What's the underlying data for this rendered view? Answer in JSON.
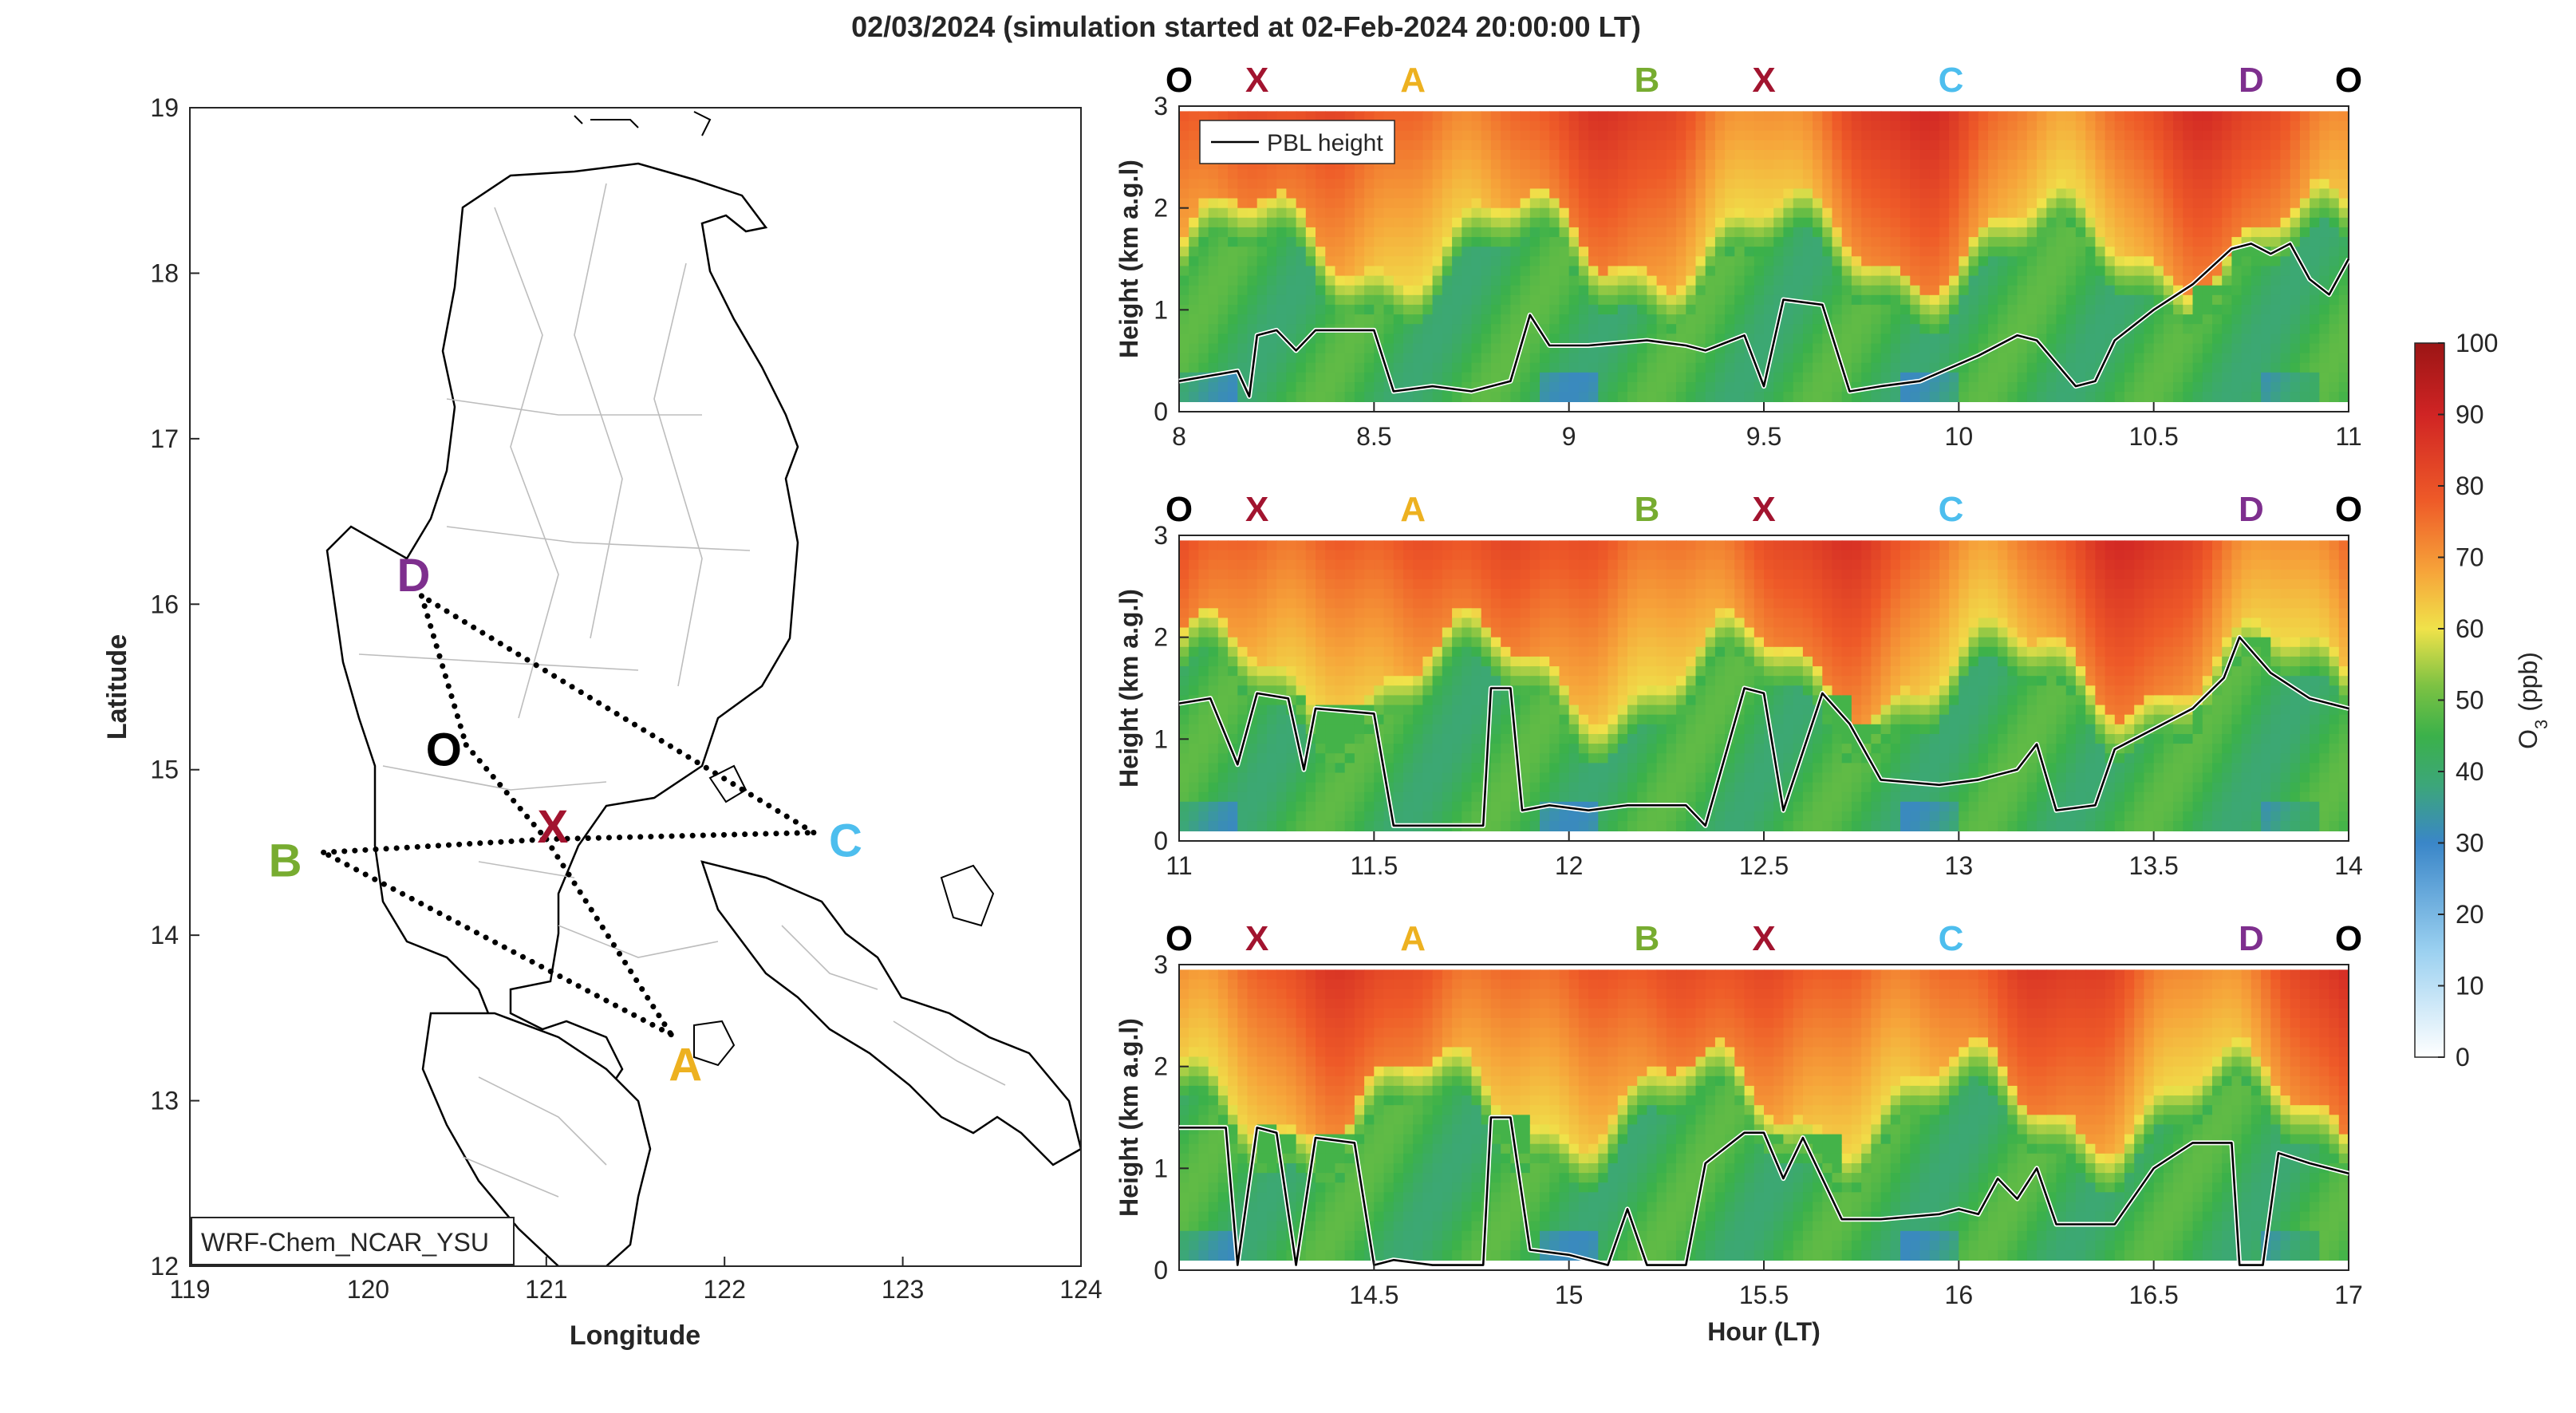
{
  "title": "02/03/2024 (simulation started at 02-Feb-2024 20:00:00 LT)",
  "chart_data": [
    {
      "type": "map",
      "xlabel": "Longitude",
      "ylabel": "Latitude",
      "xlim": [
        119,
        124
      ],
      "ylim": [
        12,
        19
      ],
      "xticks": [
        119,
        120,
        121,
        122,
        123,
        124
      ],
      "yticks": [
        12,
        13,
        14,
        15,
        16,
        17,
        18,
        19
      ],
      "model_label": "WRF-Chem_NCAR_YSU",
      "route": [
        "O",
        "X",
        "A",
        "B",
        "X",
        "C",
        "D",
        "O"
      ],
      "points": [
        {
          "id": "D",
          "lon": 120.3,
          "lat": 16.05,
          "color": "#7E2F8E"
        },
        {
          "id": "O",
          "lon": 120.55,
          "lat": 15.15,
          "color": "#000000"
        },
        {
          "id": "X",
          "lon": 121.0,
          "lat": 14.58,
          "color": "#A2142F"
        },
        {
          "id": "B",
          "lon": 119.75,
          "lat": 14.5,
          "color": "#77AC30"
        },
        {
          "id": "C",
          "lon": 122.5,
          "lat": 14.62,
          "color": "#4DBEEE"
        },
        {
          "id": "A",
          "lon": 121.7,
          "lat": 13.4,
          "color": "#EDB120"
        }
      ]
    },
    {
      "type": "heatmap",
      "ylabel": "Height (km a.g.l)",
      "xlim": [
        8,
        11
      ],
      "ylim": [
        0,
        3
      ],
      "xticks": [
        "8",
        "8.5",
        "9",
        "9.5",
        "10",
        "10.5",
        "11"
      ],
      "yticks": [
        "0",
        "1",
        "2",
        "3"
      ],
      "legend": "PBL height",
      "markers": [
        {
          "label": "O",
          "x": 8.0,
          "color": "#000000"
        },
        {
          "label": "X",
          "x": 8.2,
          "color": "#A2142F"
        },
        {
          "label": "A",
          "x": 8.6,
          "color": "#EDB120"
        },
        {
          "label": "B",
          "x": 9.2,
          "color": "#77AC30"
        },
        {
          "label": "X",
          "x": 9.5,
          "color": "#A2142F"
        },
        {
          "label": "C",
          "x": 9.98,
          "color": "#4DBEEE"
        },
        {
          "label": "D",
          "x": 10.75,
          "color": "#7E2F8E"
        },
        {
          "label": "O",
          "x": 11.0,
          "color": "#000000"
        }
      ],
      "pbl_height": {
        "x": [
          8.0,
          8.15,
          8.18,
          8.2,
          8.25,
          8.3,
          8.35,
          8.45,
          8.5,
          8.55,
          8.65,
          8.75,
          8.85,
          8.9,
          8.95,
          9.05,
          9.2,
          9.3,
          9.35,
          9.45,
          9.5,
          9.55,
          9.65,
          9.72,
          9.8,
          9.9,
          10.05,
          10.15,
          10.2,
          10.3,
          10.35,
          10.4,
          10.5,
          10.6,
          10.7,
          10.75,
          10.8,
          10.85,
          10.9,
          10.95,
          11.0
        ],
        "y": [
          0.3,
          0.4,
          0.15,
          0.75,
          0.8,
          0.6,
          0.8,
          0.8,
          0.8,
          0.2,
          0.25,
          0.2,
          0.3,
          0.95,
          0.65,
          0.65,
          0.7,
          0.65,
          0.6,
          0.75,
          0.25,
          1.1,
          1.05,
          0.2,
          0.25,
          0.3,
          0.55,
          0.75,
          0.7,
          0.25,
          0.3,
          0.7,
          1.0,
          1.25,
          1.6,
          1.65,
          1.55,
          1.65,
          1.3,
          1.15,
          1.5
        ]
      }
    },
    {
      "type": "heatmap",
      "ylabel": "Height (km a.g.l)",
      "xlim": [
        11,
        14
      ],
      "ylim": [
        0,
        3
      ],
      "xticks": [
        "11",
        "11.5",
        "12",
        "12.5",
        "13",
        "13.5",
        "14"
      ],
      "yticks": [
        "0",
        "1",
        "2",
        "3"
      ],
      "markers": [
        {
          "label": "O",
          "x": 11.0,
          "color": "#000000"
        },
        {
          "label": "X",
          "x": 11.2,
          "color": "#A2142F"
        },
        {
          "label": "A",
          "x": 11.6,
          "color": "#EDB120"
        },
        {
          "label": "B",
          "x": 12.2,
          "color": "#77AC30"
        },
        {
          "label": "X",
          "x": 12.5,
          "color": "#A2142F"
        },
        {
          "label": "C",
          "x": 12.98,
          "color": "#4DBEEE"
        },
        {
          "label": "D",
          "x": 13.75,
          "color": "#7E2F8E"
        },
        {
          "label": "O",
          "x": 14.0,
          "color": "#000000"
        }
      ],
      "pbl_height": {
        "x": [
          11.0,
          11.08,
          11.15,
          11.2,
          11.28,
          11.32,
          11.35,
          11.5,
          11.55,
          11.65,
          11.78,
          11.8,
          11.85,
          11.88,
          11.95,
          12.05,
          12.15,
          12.3,
          12.35,
          12.45,
          12.5,
          12.55,
          12.65,
          12.72,
          12.8,
          12.95,
          13.05,
          13.15,
          13.2,
          13.25,
          13.35,
          13.4,
          13.5,
          13.6,
          13.68,
          13.72,
          13.8,
          13.9,
          14.0
        ],
        "y": [
          1.35,
          1.4,
          0.75,
          1.45,
          1.4,
          0.7,
          1.3,
          1.25,
          0.15,
          0.15,
          0.15,
          1.5,
          1.5,
          0.3,
          0.35,
          0.3,
          0.35,
          0.35,
          0.15,
          1.5,
          1.45,
          0.3,
          1.45,
          1.15,
          0.6,
          0.55,
          0.6,
          0.7,
          0.95,
          0.3,
          0.35,
          0.9,
          1.1,
          1.3,
          1.6,
          2.0,
          1.65,
          1.4,
          1.3
        ]
      }
    },
    {
      "type": "heatmap",
      "ylabel": "Height (km a.g.l)",
      "xlabel": "Hour (LT)",
      "xlim": [
        14,
        17
      ],
      "ylim": [
        0,
        3
      ],
      "xticks": [
        "14.5",
        "15",
        "15.5",
        "16",
        "16.5",
        "17"
      ],
      "yticks": [
        "0",
        "1",
        "2",
        "3"
      ],
      "markers": [
        {
          "label": "O",
          "x": 14.0,
          "color": "#000000"
        },
        {
          "label": "X",
          "x": 14.2,
          "color": "#A2142F"
        },
        {
          "label": "A",
          "x": 14.6,
          "color": "#EDB120"
        },
        {
          "label": "B",
          "x": 15.2,
          "color": "#77AC30"
        },
        {
          "label": "X",
          "x": 15.5,
          "color": "#A2142F"
        },
        {
          "label": "C",
          "x": 15.98,
          "color": "#4DBEEE"
        },
        {
          "label": "D",
          "x": 16.75,
          "color": "#7E2F8E"
        },
        {
          "label": "O",
          "x": 17.0,
          "color": "#000000"
        }
      ],
      "pbl_height": {
        "x": [
          14.0,
          14.12,
          14.15,
          14.2,
          14.25,
          14.3,
          14.35,
          14.45,
          14.5,
          14.55,
          14.65,
          14.78,
          14.8,
          14.85,
          14.9,
          15.0,
          15.1,
          15.15,
          15.2,
          15.3,
          15.35,
          15.45,
          15.5,
          15.55,
          15.6,
          15.7,
          15.8,
          15.95,
          16.0,
          16.05,
          16.1,
          16.15,
          16.2,
          16.25,
          16.4,
          16.5,
          16.6,
          16.7,
          16.72,
          16.78,
          16.82,
          16.9,
          17.0
        ],
        "y": [
          1.4,
          1.4,
          0.05,
          1.4,
          1.35,
          0.05,
          1.3,
          1.25,
          0.05,
          0.1,
          0.05,
          0.05,
          1.5,
          1.5,
          0.2,
          0.15,
          0.05,
          0.6,
          0.05,
          0.05,
          1.05,
          1.35,
          1.35,
          0.9,
          1.3,
          0.5,
          0.5,
          0.55,
          0.6,
          0.55,
          0.9,
          0.7,
          1.0,
          0.45,
          0.45,
          1.0,
          1.25,
          1.25,
          0.05,
          0.05,
          1.15,
          1.05,
          0.95
        ]
      }
    },
    {
      "type": "colorbar",
      "label_main": "O",
      "label_sub": "3",
      "label_unit": "(ppb)",
      "ticks": [
        "0",
        "10",
        "20",
        "30",
        "40",
        "50",
        "60",
        "70",
        "80",
        "90",
        "100"
      ],
      "range": [
        0,
        100
      ]
    }
  ]
}
